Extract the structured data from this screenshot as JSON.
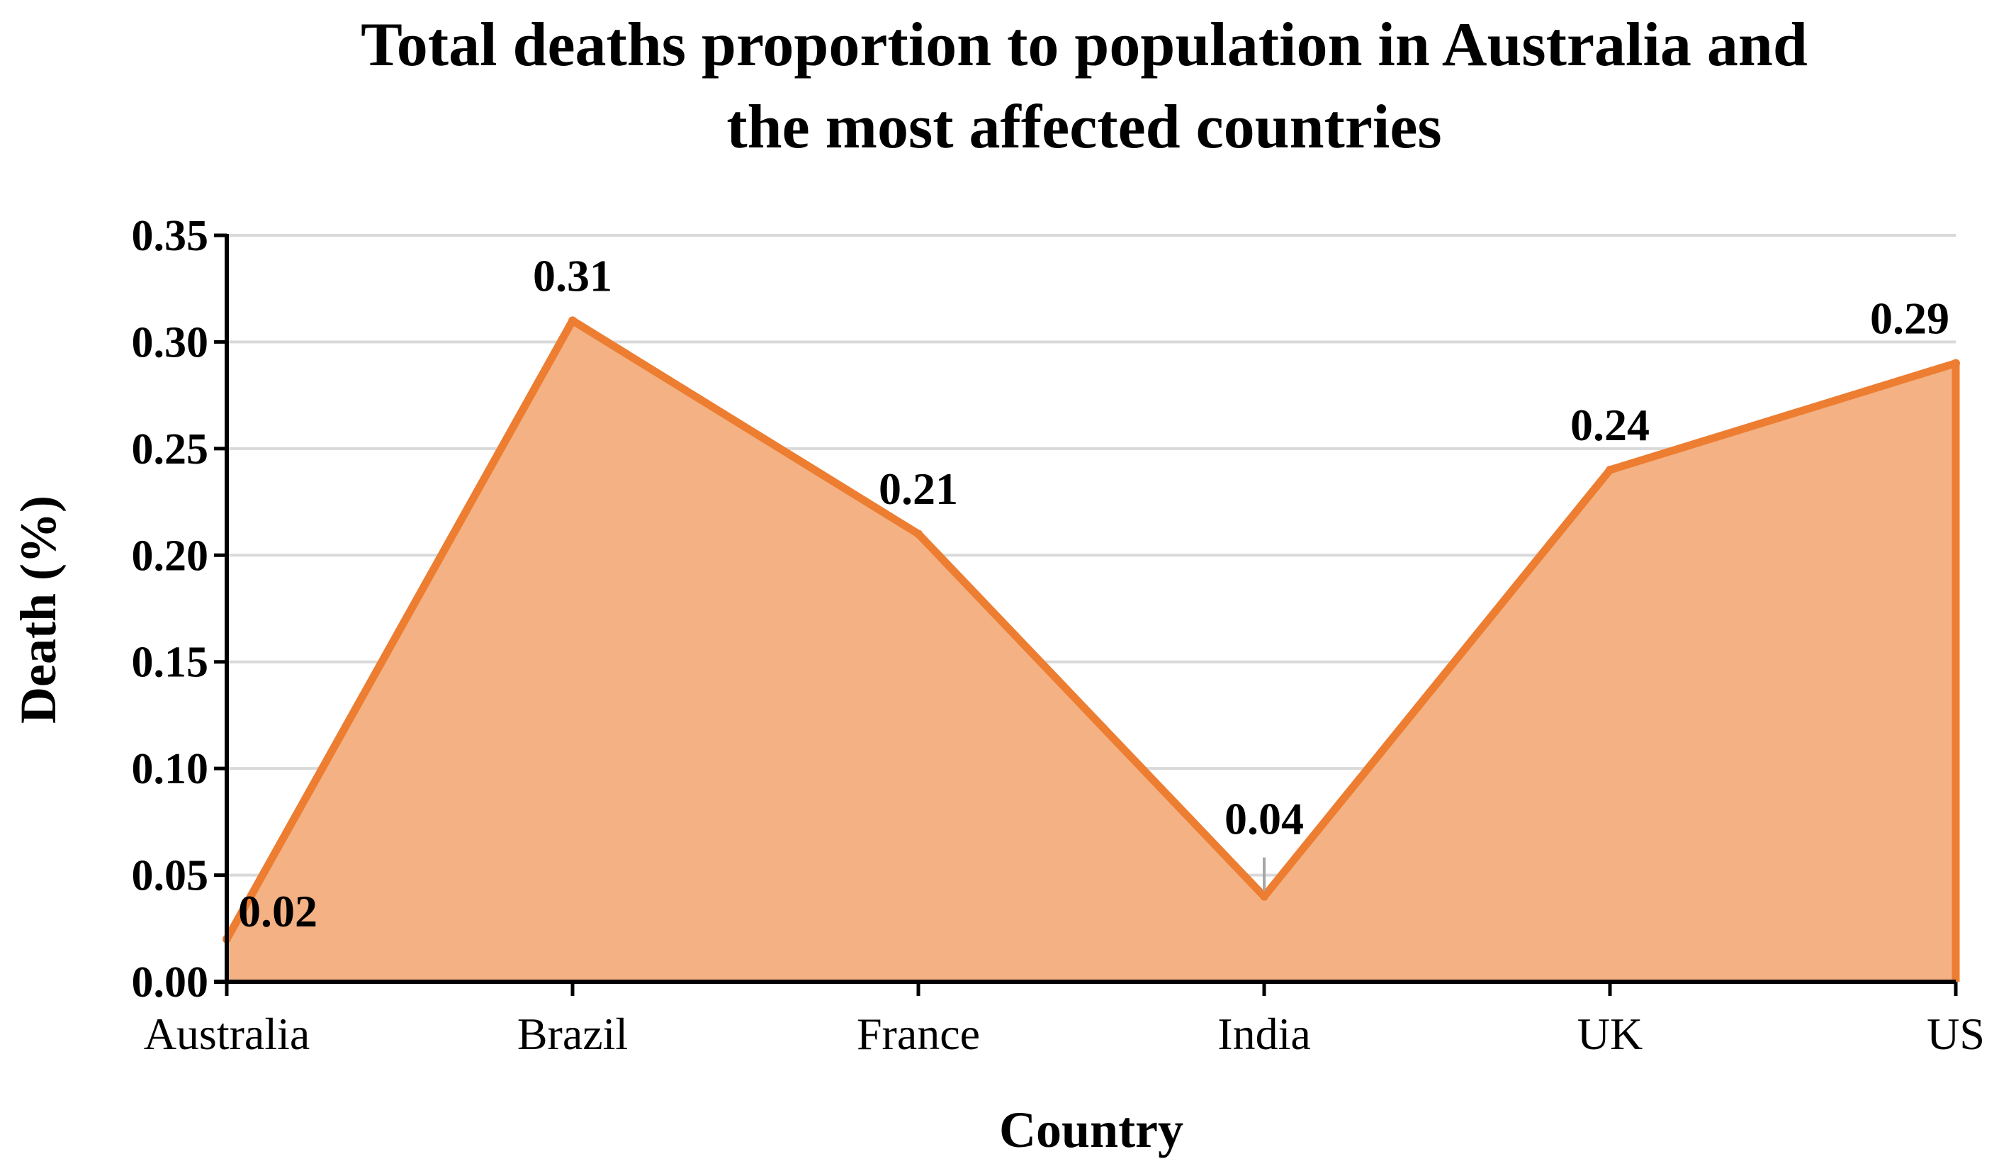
{
  "chart_data": {
    "type": "area",
    "title": "Total deaths proportion to population in Australia and the most affected countries",
    "title_lines": [
      "Total deaths proportion to population in Australia and",
      "the most affected countries"
    ],
    "xlabel": "Country",
    "ylabel": "Death (%)",
    "categories": [
      "Australia",
      "Brazil",
      "France",
      "India",
      "UK",
      "US"
    ],
    "series": [
      {
        "name": "Death (%)",
        "values": [
          0.02,
          0.31,
          0.21,
          0.04,
          0.24,
          0.29
        ],
        "data_labels": [
          "0.02",
          "0.31",
          "0.21",
          "0.04",
          "0.24",
          "0.29"
        ]
      }
    ],
    "ylim": [
      0,
      0.35
    ],
    "yticks": [
      0.0,
      0.05,
      0.1,
      0.15,
      0.2,
      0.25,
      0.3,
      0.35
    ],
    "ytick_labels": [
      "0.00",
      "0.05",
      "0.10",
      "0.15",
      "0.20",
      "0.25",
      "0.30",
      "0.35"
    ],
    "grid": true,
    "legend": "none",
    "colors": {
      "line": "#ED7D31",
      "fill": "#F4B183",
      "grid": "#D9D9D9",
      "axis": "#000000",
      "leader": "#A6A6A6"
    }
  }
}
